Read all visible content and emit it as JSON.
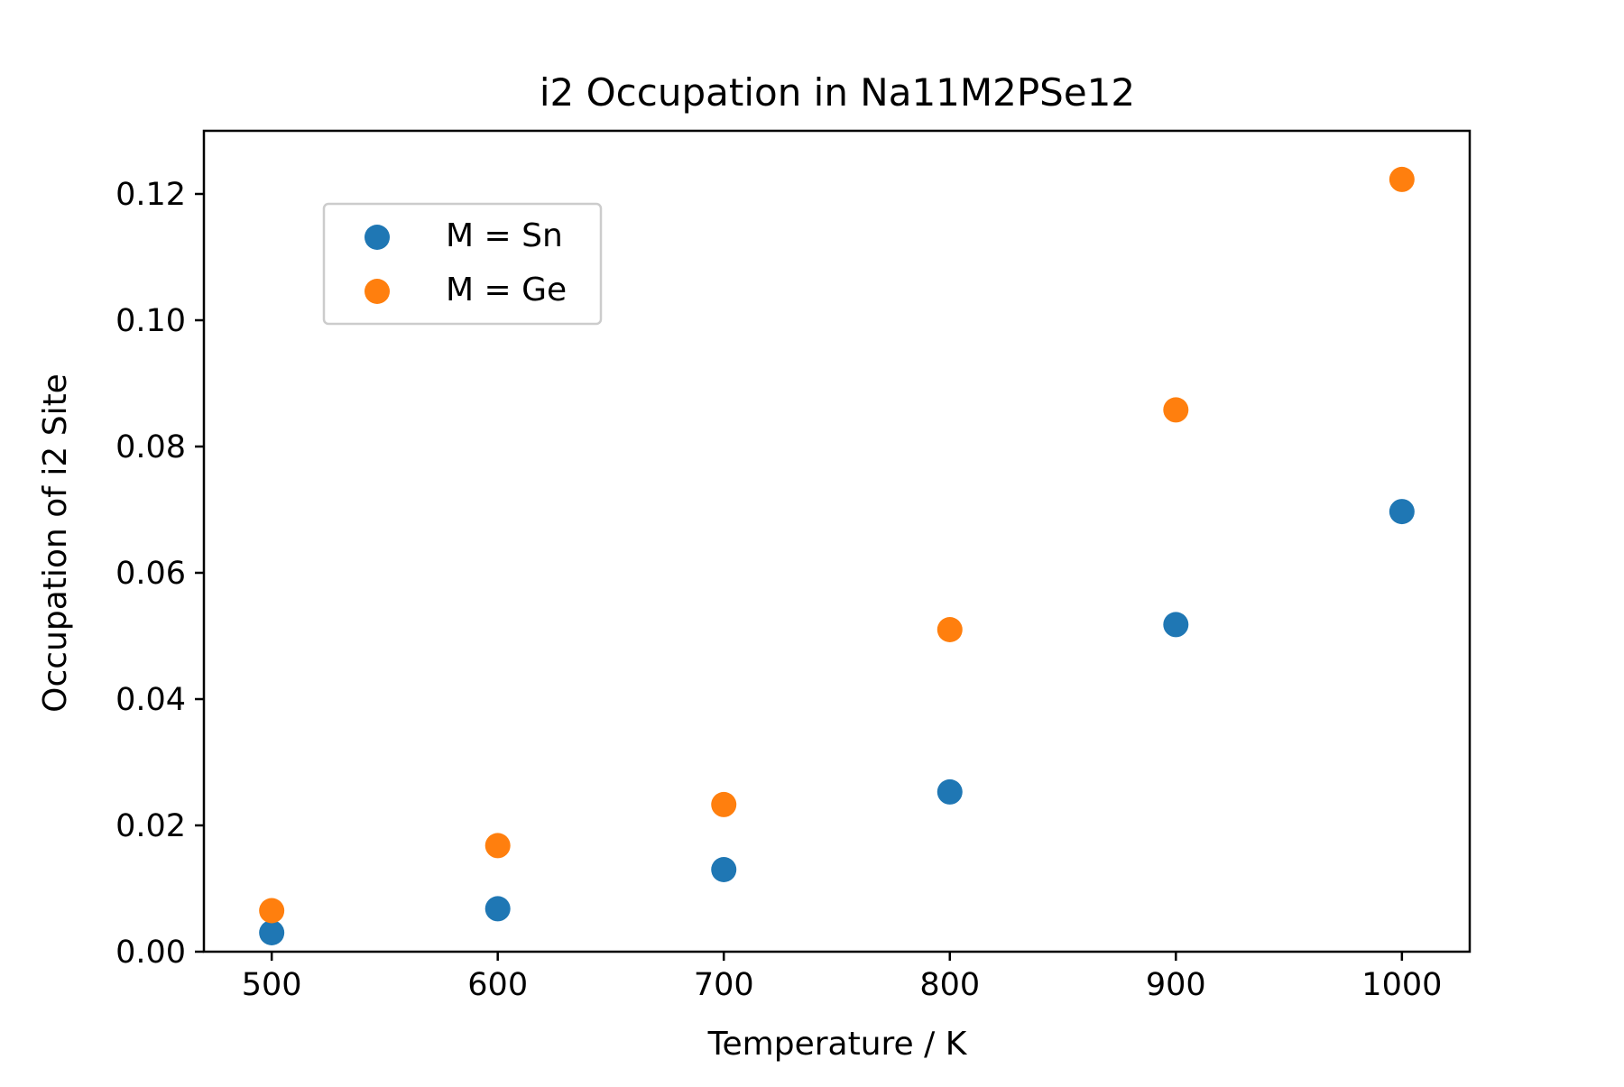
{
  "chart_data": {
    "type": "scatter",
    "title": "i2 Occupation in Na11M2PSe12",
    "xlabel": "Temperature / K",
    "ylabel": "Occupation of i2 Site",
    "xlim": [
      470,
      1030
    ],
    "ylim": [
      0,
      0.13
    ],
    "xticks": [
      500,
      600,
      700,
      800,
      900,
      1000
    ],
    "yticks": [
      0.0,
      0.02,
      0.04,
      0.06,
      0.08,
      0.1,
      0.12
    ],
    "xtick_labels": [
      "500",
      "600",
      "700",
      "800",
      "900",
      "1000"
    ],
    "ytick_labels": [
      "0.00",
      "0.02",
      "0.04",
      "0.06",
      "0.08",
      "0.10",
      "0.12"
    ],
    "grid": false,
    "legend_position": "upper-left",
    "series": [
      {
        "name": "M = Sn",
        "color": "#1f77b4",
        "x": [
          500,
          600,
          700,
          800,
          900,
          1000
        ],
        "y": [
          0.003,
          0.0068,
          0.013,
          0.0253,
          0.0518,
          0.0697
        ]
      },
      {
        "name": "M = Ge",
        "color": "#ff7f0e",
        "x": [
          500,
          600,
          700,
          800,
          900,
          1000
        ],
        "y": [
          0.0065,
          0.0168,
          0.0233,
          0.051,
          0.0858,
          0.1223
        ]
      }
    ]
  }
}
